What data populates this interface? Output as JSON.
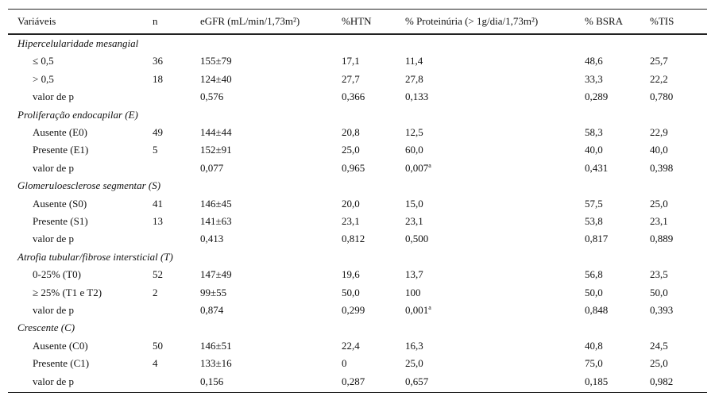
{
  "table": {
    "header": [
      "Variáveis",
      "n",
      "eGFR (mL/min/1,73m²)",
      "%HTN",
      "% Proteinúria (> 1g/dia/1,73m²)",
      "% BSRA",
      "%TIS"
    ],
    "groups": [
      {
        "title": "Hipercelularidade mesangial",
        "rows": [
          [
            "≤ 0,5",
            "36",
            "155±79",
            "17,1",
            "11,4",
            "48,6",
            "25,7"
          ],
          [
            "> 0,5",
            "18",
            "124±40",
            "27,7",
            "27,8",
            "33,3",
            "22,2"
          ],
          [
            "valor de p",
            null,
            "0,576",
            "0,366",
            "0,133",
            "0,289",
            "0,780"
          ]
        ]
      },
      {
        "title": "Proliferação endocapilar (E)",
        "rows": [
          [
            "Ausente (E0)",
            "49",
            "144±44",
            "20,8",
            "12,5",
            "58,3",
            "22,9"
          ],
          [
            "Presente (E1)",
            "5",
            "152±91",
            "25,0",
            "60,0",
            "40,0",
            "40,0"
          ],
          [
            "valor de p",
            null,
            "0,077",
            "0,965",
            {
              "text": "0,007",
              "sup": "a"
            },
            "0,431",
            "0,398"
          ]
        ]
      },
      {
        "title": "Glomeruloesclerose segmentar (S)",
        "rows": [
          [
            "Ausente (S0)",
            "41",
            "146±45",
            "20,0",
            "15,0",
            "57,5",
            "25,0"
          ],
          [
            "Presente (S1)",
            "13",
            "141±63",
            "23,1",
            "23,1",
            "53,8",
            "23,1"
          ],
          [
            "valor de p",
            null,
            "0,413",
            "0,812",
            "0,500",
            "0,817",
            "0,889"
          ]
        ]
      },
      {
        "title": "Atrofia tubular/fibrose intersticial (T)",
        "rows": [
          [
            "0-25% (T0)",
            "52",
            "147±49",
            "19,6",
            "13,7",
            "56,8",
            "23,5"
          ],
          [
            "≥ 25% (T1 e T2)",
            "2",
            "99±55",
            "50,0",
            "100",
            "50,0",
            "50,0"
          ],
          [
            "valor de p",
            null,
            "0,874",
            "0,299",
            {
              "text": "0,001",
              "sup": "a"
            },
            "0,848",
            "0,393"
          ]
        ]
      },
      {
        "title": "Crescente (C)",
        "rows": [
          [
            "Ausente (C0)",
            "50",
            "146±51",
            "22,4",
            "16,3",
            "40,8",
            "24,5"
          ],
          [
            "Presente (C1)",
            "4",
            "133±16",
            "0",
            "25,0",
            "75,0",
            "25,0"
          ],
          [
            "valor de p",
            null,
            "0,156",
            "0,287",
            "0,657",
            "0,185",
            "0,982"
          ]
        ]
      }
    ]
  }
}
